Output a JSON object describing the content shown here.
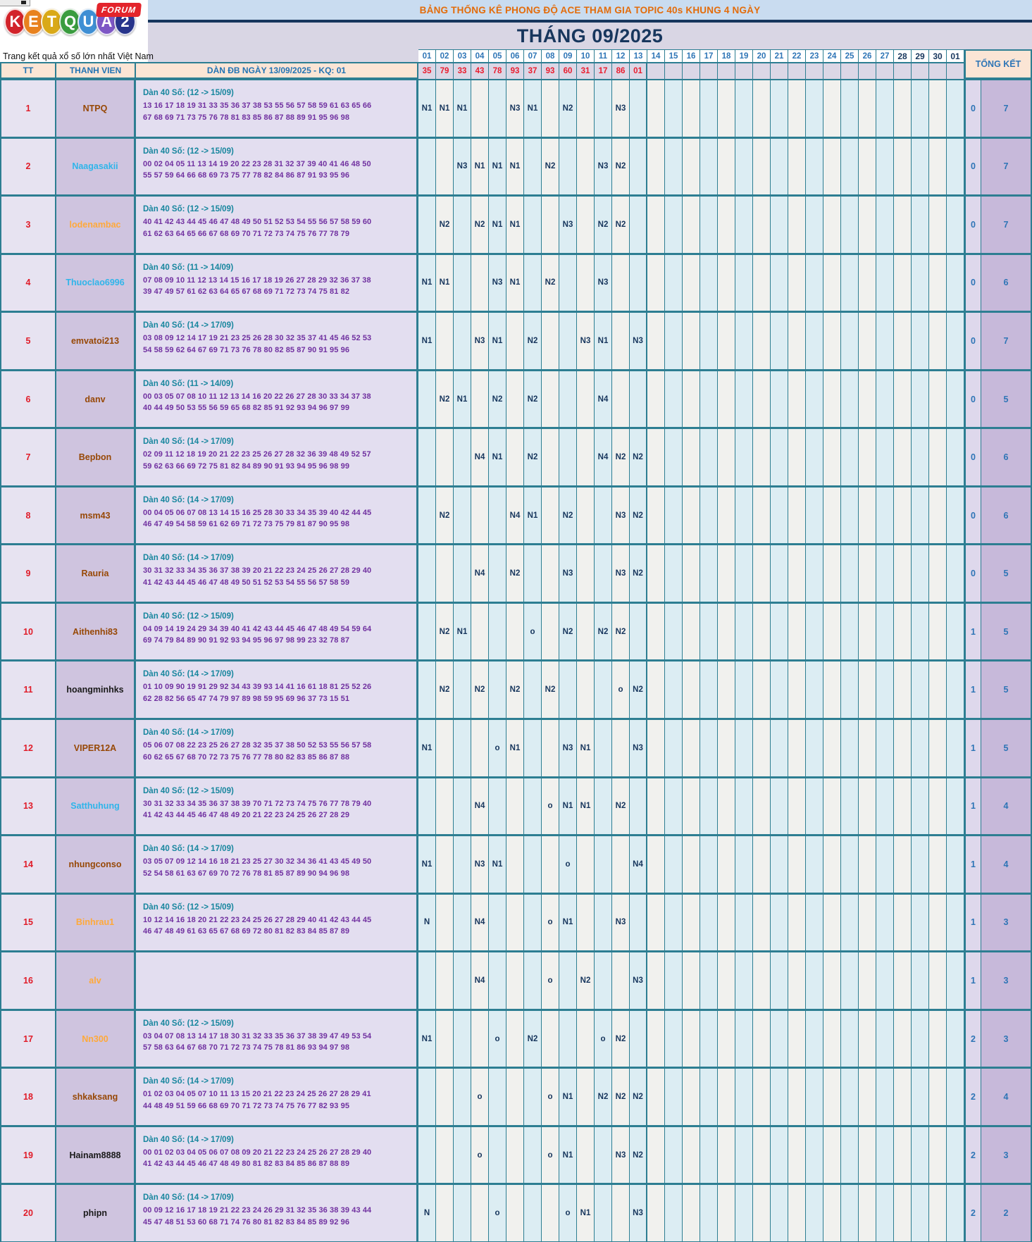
{
  "logo": {
    "letters": [
      {
        "ch": "K",
        "color": "#d2232a"
      },
      {
        "ch": "E",
        "color": "#e8821e"
      },
      {
        "ch": "T",
        "color": "#d9a918"
      },
      {
        "ch": "Q",
        "color": "#3a9c3f"
      },
      {
        "ch": "U",
        "color": "#3f8fd4"
      },
      {
        "ch": "A",
        "color": "#7e57c5"
      },
      {
        "ch": "2",
        "color": "#27348b"
      }
    ],
    "forum_label": "FORUM",
    "tagline": "Trang kết quả xổ số lớn nhất Việt Nam"
  },
  "banner": {
    "title": "BẢNG THỐNG KÊ PHONG ĐỘ ACE THAM GIA TOPIC 40s KHUNG 4 NGÀY"
  },
  "month_title": "THÁNG 09/2025",
  "colors": {
    "border_teal": "#2d7e92",
    "marker_navy": "#17365d",
    "result_red": "#ea1c2d",
    "dan_purple": "#7030a0",
    "dan_title_teal": "#17869e",
    "header_peach": "#fbe5d5",
    "tk_blue": "#2e75b6"
  },
  "table": {
    "col_headers": {
      "tt": "TT",
      "member": "THANH VIEN",
      "dan": "DÀN ĐB NGÀY 13/09/2025 - KQ: 01",
      "total": "TỔNG KẾT"
    },
    "day_columns": [
      "01",
      "02",
      "03",
      "04",
      "05",
      "06",
      "07",
      "08",
      "09",
      "10",
      "11",
      "12",
      "13",
      "14",
      "15",
      "16",
      "17",
      "18",
      "19",
      "20",
      "21",
      "22",
      "23",
      "24",
      "25",
      "26",
      "27",
      "28",
      "29",
      "30",
      "01"
    ],
    "bold_day_count": 4,
    "results": [
      "35",
      "79",
      "33",
      "43",
      "78",
      "93",
      "37",
      "93",
      "60",
      "31",
      "17",
      "86",
      "01"
    ],
    "rows": [
      {
        "tt": "1",
        "member": "NTPQ",
        "member_color": "#974806",
        "dan_title": "Dàn 40 Số: (12 -> 15/09)",
        "dan_line1": "13 16 17 18 19 31 33 35 36 37 38 53 55 56 57 58 59 61 63 65 66",
        "dan_line2": "67 68 69 71 73 75 76 78 81 83 85 86 87 88 89 91 95 96 98",
        "marks": {
          "1": "N1",
          "2": "N1",
          "3": "N1",
          "6": "N3",
          "7": "N1",
          "9": "N2",
          "12": "N3"
        },
        "tk1": "0",
        "tk2": "7"
      },
      {
        "tt": "2",
        "member": "Naagasakii",
        "member_color": "#2fb5ea",
        "dan_title": "Dàn 40 Số: (12 -> 15/09)",
        "dan_line1": "00 02 04 05 11 13 14 19 20 22 23 28 31 32 37 39 40 41 46 48 50",
        "dan_line2": "55 57 59 64 66 68 69 73 75 77 78 82 84 86 87 91 93 95 96",
        "marks": {
          "3": "N3",
          "4": "N1",
          "5": "N1",
          "6": "N1",
          "8": "N2",
          "11": "N3",
          "12": "N2"
        },
        "tk1": "0",
        "tk2": "7"
      },
      {
        "tt": "3",
        "member": "lodenambac",
        "member_color": "#ffa93a",
        "dan_title": "Dàn 40 Số: (12 -> 15/09)",
        "dan_line1": "40 41 42 43 44 45 46 47 48 49 50 51 52 53 54 55 56 57 58 59 60",
        "dan_line2": "61 62 63 64 65 66 67 68 69 70 71 72 73 74 75 76 77 78 79",
        "marks": {
          "2": "N2",
          "4": "N2",
          "5": "N1",
          "6": "N1",
          "9": "N3",
          "11": "N2",
          "12": "N2"
        },
        "tk1": "0",
        "tk2": "7"
      },
      {
        "tt": "4",
        "member": "Thuoclao6996",
        "member_color": "#2fb5ea",
        "dan_title": "Dàn 40 Số: (11 -> 14/09)",
        "dan_line1": "07 08 09 10 11 12 13 14 15 16 17 18 19 26 27 28 29 32 36 37 38",
        "dan_line2": "39 47 49 57 61 62 63 64 65 67 68 69 71 72 73 74 75 81 82",
        "marks": {
          "1": "N1",
          "2": "N1",
          "5": "N3",
          "6": "N1",
          "8": "N2",
          "11": "N3"
        },
        "tk1": "0",
        "tk2": "6"
      },
      {
        "tt": "5",
        "member": "emvatoi213",
        "member_color": "#974806",
        "dan_title": "Dàn 40 Số: (14 -> 17/09)",
        "dan_line1": "03 08 09 12 14 17 19 21 23 25 26 28 30 32 35 37 41 45 46 52 53",
        "dan_line2": "54 58 59 62 64 67 69 71 73 76 78 80 82 85 87 90 91 95 96",
        "marks": {
          "1": "N1",
          "4": "N3",
          "5": "N1",
          "7": "N2",
          "10": "N3",
          "11": "N1",
          "13": "N3"
        },
        "tk1": "0",
        "tk2": "7"
      },
      {
        "tt": "6",
        "member": "danv",
        "member_color": "#974806",
        "dan_title": "Dàn 40 Số: (11 -> 14/09)",
        "dan_line1": "00 03 05 07 08 10 11 12 13 14 16 20 22 26 27 28 30 33 34 37 38",
        "dan_line2": "40 44 49 50 53 55 56 59 65 68 82 85 91 92 93 94 96 97 99",
        "marks": {
          "2": "N2",
          "3": "N1",
          "5": "N2",
          "7": "N2",
          "11": "N4"
        },
        "tk1": "0",
        "tk2": "5"
      },
      {
        "tt": "7",
        "member": "Bepbon",
        "member_color": "#974806",
        "dan_title": "Dàn 40 Số: (14 -> 17/09)",
        "dan_line1": "02 09 11 12 18 19 20 21 22 23 25 26 27 28 32 36 39 48 49 52 57",
        "dan_line2": "59 62 63 66 69 72 75 81 82 84 89 90 91 93 94 95 96 98 99",
        "marks": {
          "4": "N4",
          "5": "N1",
          "7": "N2",
          "11": "N4",
          "12": "N2",
          "13": "N2"
        },
        "tk1": "0",
        "tk2": "6"
      },
      {
        "tt": "8",
        "member": "msm43",
        "member_color": "#974806",
        "dan_title": "Dàn 40 Số: (14 -> 17/09)",
        "dan_line1": "00 04 05 06 07 08 13 14 15 16 25 28 30 33 34 35 39 40 42 44 45",
        "dan_line2": "46 47 49 54 58 59 61 62 69 71 72 73 75 79 81 87 90 95 98",
        "marks": {
          "2": "N2",
          "6": "N4",
          "7": "N1",
          "9": "N2",
          "12": "N3",
          "13": "N2"
        },
        "tk1": "0",
        "tk2": "6"
      },
      {
        "tt": "9",
        "member": "Rauria",
        "member_color": "#974806",
        "dan_title": "Dàn 40 Số: (14 -> 17/09)",
        "dan_line1": "30 31 32 33 34 35 36 37 38 39 20 21 22 23 24 25 26 27 28 29 40",
        "dan_line2": "41 42 43 44 45 46 47 48 49 50 51 52 53 54 55 56 57 58 59",
        "marks": {
          "4": "N4",
          "6": "N2",
          "9": "N3",
          "12": "N3",
          "13": "N2"
        },
        "tk1": "0",
        "tk2": "5"
      },
      {
        "tt": "10",
        "member": "Aithenhi83",
        "member_color": "#974806",
        "dan_title": "Dàn 40 Số: (12 -> 15/09)",
        "dan_line1": "04 09 14 19 24 29 34 39 40 41 42 43 44 45 46 47 48 49 54 59 64",
        "dan_line2": "69 74 79 84 89 90 91 92 93 94 95 96 97 98 99 23 32 78 87",
        "marks": {
          "2": "N2",
          "3": "N1",
          "7": "o",
          "9": "N2",
          "11": "N2",
          "12": "N2"
        },
        "tk1": "1",
        "tk2": "5"
      },
      {
        "tt": "11",
        "member": "hoangminhks",
        "member_color": "#1a1a1a",
        "dan_title": "Dàn 40 Số: (14 -> 17/09)",
        "dan_line1": "01 10 09 90 19 91 29 92 34 43 39 93 14 41 16 61 18 81 25 52 26",
        "dan_line2": "62 28 82 56 65 47 74 79 97 89 98 59 95 69 96 37 73 15 51",
        "marks": {
          "2": "N2",
          "4": "N2",
          "6": "N2",
          "8": "N2",
          "12": "o",
          "13": "N2"
        },
        "tk1": "1",
        "tk2": "5"
      },
      {
        "tt": "12",
        "member": "VIPER12A",
        "member_color": "#974806",
        "dan_title": "Dàn 40 Số: (14 -> 17/09)",
        "dan_line1": "05 06 07 08 22 23 25 26 27 28 32 35 37 38 50 52 53 55 56 57 58",
        "dan_line2": "60 62 65 67 68 70 72 73 75 76 77 78 80 82 83 85 86 87 88",
        "marks": {
          "1": "N1",
          "5": "o",
          "6": "N1",
          "9": "N3",
          "10": "N1",
          "13": "N3"
        },
        "tk1": "1",
        "tk2": "5"
      },
      {
        "tt": "13",
        "member": "Satthuhung",
        "member_color": "#2fb5ea",
        "dan_title": "Dàn 40 Số: (12 -> 15/09)",
        "dan_line1": "30 31 32 33 34 35 36 37 38 39 70 71 72 73 74 75 76 77 78 79 40",
        "dan_line2": "41 42 43 44 45 46 47 48 49 20 21 22 23 24 25 26 27 28 29",
        "marks": {
          "4": "N4",
          "8": "o",
          "9": "N1",
          "10": "N1",
          "12": "N2"
        },
        "tk1": "1",
        "tk2": "4"
      },
      {
        "tt": "14",
        "member": "nhungconso",
        "member_color": "#974806",
        "dan_title": "Dàn 40 Số: (14 -> 17/09)",
        "dan_line1": "03 05 07 09 12 14 16 18 21 23 25 27 30 32 34 36 41 43 45 49 50",
        "dan_line2": "52 54 58 61 63 67 69 70 72 76 78 81 85 87 89 90 94 96 98",
        "marks": {
          "1": "N1",
          "4": "N3",
          "5": "N1",
          "9": "o",
          "13": "N4"
        },
        "tk1": "1",
        "tk2": "4"
      },
      {
        "tt": "15",
        "member": "Binhrau1",
        "member_color": "#ffa93a",
        "dan_title": "Dàn 40 Số: (12 -> 15/09)",
        "dan_line1": "10 12 14 16 18 20 21 22 23 24 25 26 27 28 29 40 41 42 43 44 45",
        "dan_line2": "46 47 48 49 61 63 65 67 68 69 72 80 81 82 83 84 85 87 89",
        "marks": {
          "1": "N",
          "4": "N4",
          "8": "o",
          "9": "N1",
          "12": "N3"
        },
        "tk1": "1",
        "tk2": "3"
      },
      {
        "tt": "16",
        "member": "alv",
        "member_color": "#ffa93a",
        "dan_title": "",
        "dan_line1": "",
        "dan_line2": "",
        "marks": {
          "4": "N4",
          "8": "o",
          "10": "N2",
          "13": "N3"
        },
        "tk1": "1",
        "tk2": "3"
      },
      {
        "tt": "17",
        "member": "Nn300",
        "member_color": "#ffa93a",
        "dan_title": "Dàn 40 Số: (12 -> 15/09)",
        "dan_line1": "03 04 07 08 13 14 17 18 30 31 32 33 35 36 37 38 39 47 49 53 54",
        "dan_line2": "57 58 63 64 67 68 70 71 72 73 74 75 78 81 86 93 94 97 98",
        "marks": {
          "1": "N1",
          "5": "o",
          "7": "N2",
          "11": "o",
          "12": "N2"
        },
        "tk1": "2",
        "tk2": "3"
      },
      {
        "tt": "18",
        "member": "shkaksang",
        "member_color": "#974806",
        "dan_title": "Dàn 40 Số: (14 -> 17/09)",
        "dan_line1": "01 02 03 04 05 07 10 11 13 15 20 21 22 23 24 25 26 27 28 29 41",
        "dan_line2": "44 48 49 51 59 66 68 69 70 71 72 73 74 75 76 77 82 93 95",
        "marks": {
          "4": "o",
          "8": "o",
          "9": "N1",
          "11": "N2",
          "12": "N2",
          "13": "N2"
        },
        "tk1": "2",
        "tk2": "4"
      },
      {
        "tt": "19",
        "member": "Hainam8888",
        "member_color": "#1a1a1a",
        "dan_title": "Dàn 40 Số: (14 -> 17/09)",
        "dan_line1": "00 01 02 03 04 05 06 07 08 09 20 21 22 23 24 25 26 27 28 29 40",
        "dan_line2": "41 42 43 44 45 46 47 48 49 80 81 82 83 84 85 86 87 88 89",
        "marks": {
          "4": "o",
          "8": "o",
          "9": "N1",
          "12": "N3",
          "13": "N2"
        },
        "tk1": "2",
        "tk2": "3"
      },
      {
        "tt": "20",
        "member": "phipn",
        "member_color": "#1a1a1a",
        "dan_title": "Dàn 40 Số: (14 -> 17/09)",
        "dan_line1": "00 09 12 16 17 18 19 21 22 23 24 26 29 31 32 35 36 38 39 43 44",
        "dan_line2": "45 47 48 51 53 60 68 71 74 76 80 81 82 83 84 85 89 92 96",
        "marks": {
          "1": "N",
          "5": "o",
          "9": "o",
          "10": "N1",
          "13": "N3"
        },
        "tk1": "2",
        "tk2": "2"
      }
    ]
  }
}
